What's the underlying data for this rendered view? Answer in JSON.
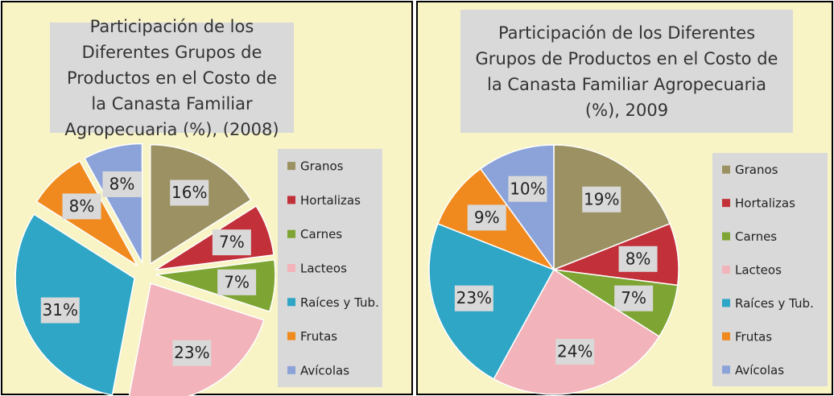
{
  "chart_data": [
    {
      "type": "pie",
      "title": "Participación de los Diferentes Grupos de Productos en el Costo de la Canasta Familiar Agropecuaria (%), (2008)",
      "categories": [
        "Granos",
        "Hortalizas",
        "Carnes",
        "Lacteos",
        "Raíces y Tub.",
        "Frutas",
        "Avícolas"
      ],
      "values": [
        16,
        7,
        7,
        23,
        31,
        8,
        8
      ],
      "value_labels": [
        "16%",
        "7%",
        "7%",
        "23%",
        "31%",
        "8%",
        "8%"
      ],
      "colors": [
        "#9c9163",
        "#c2303a",
        "#7ea533",
        "#f2b3ba",
        "#2fa6c6",
        "#f08a1e",
        "#8ca3d9"
      ],
      "exploded": true
    },
    {
      "type": "pie",
      "title": "Participación de los Diferentes Grupos de Productos en el Costo de la Canasta Familiar Agropecuaria (%), 2009",
      "categories": [
        "Granos",
        "Hortalizas",
        "Carnes",
        "Lacteos",
        "Raíces y Tub.",
        "Frutas",
        "Avícolas"
      ],
      "values": [
        19,
        8,
        7,
        24,
        23,
        9,
        10
      ],
      "value_labels": [
        "19%",
        "8%",
        "7%",
        "24%",
        "23%",
        "9%",
        "10%"
      ],
      "colors": [
        "#9c9163",
        "#c2303a",
        "#7ea533",
        "#f2b3ba",
        "#2fa6c6",
        "#f08a1e",
        "#8ca3d9"
      ],
      "exploded": false
    }
  ]
}
